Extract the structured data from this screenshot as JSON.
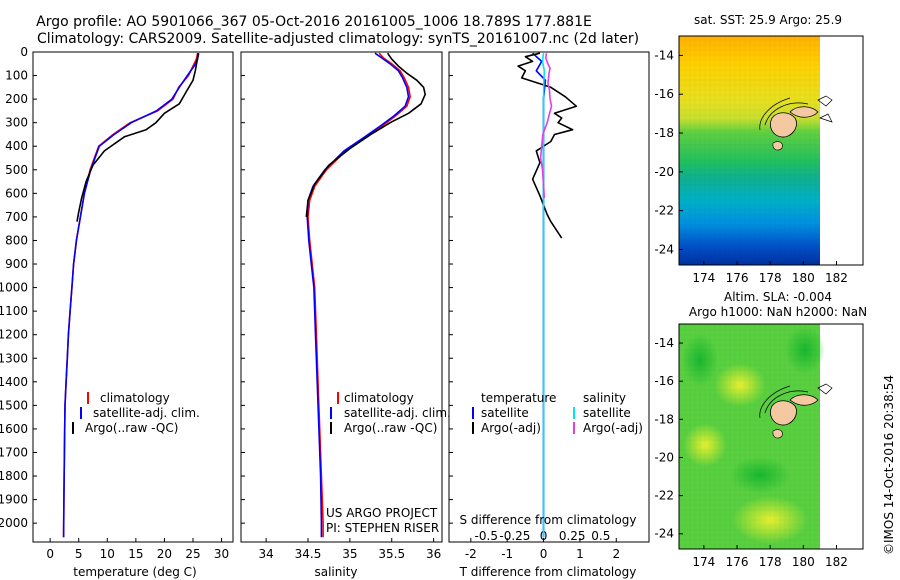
{
  "title": {
    "line1": "Argo profile: AO 5901066_367 05-Oct-2016 20161005_1006 18.789S 177.881E",
    "line2": "Climatology: CARS2009. Satellite-adjusted climatology: synTS_20161007.nc (2d later)"
  },
  "depth_ticks": [
    "0",
    "100",
    "200",
    "300",
    "400",
    "500",
    "600",
    "700",
    "800",
    "900",
    "1000",
    "1100",
    "1200",
    "1300",
    "1400",
    "1500",
    "1600",
    "1700",
    "1800",
    "1900",
    "2000"
  ],
  "colors": {
    "clim": "#ff0000",
    "sat": "#0000ff",
    "argo": "#000000",
    "sal_sat": "#00e5ee",
    "sal_argo": "#e040e0",
    "land": "#f4c8a0"
  },
  "panels": {
    "temp": {
      "xlabel": "temperature (deg C)",
      "xticks": [
        "0",
        "5",
        "10",
        "15",
        "20",
        "25",
        "30"
      ],
      "legend": [
        "climatology",
        "satellite-adj. clim.",
        "Argo(..raw -QC)"
      ]
    },
    "sal": {
      "xlabel": "salinity",
      "xticks": [
        "34",
        "34.5",
        "35",
        "35.5",
        "36"
      ],
      "legend": [
        "climatology",
        "satellite-adj. clim.",
        "Argo(..raw -QC)"
      ],
      "credit1": "US ARGO PROJECT",
      "credit2": "PI: STEPHEN RISER"
    },
    "diff": {
      "xlabel": "T difference from climatology",
      "xticks_bottom": [
        "-2",
        "-1",
        "0",
        "1",
        "2"
      ],
      "toplabel": "S difference from climatology",
      "xticks_top": [
        "-0.5",
        "-0.25",
        "0",
        "0.25",
        "0.5"
      ],
      "legend_temp_head": "temperature",
      "legend_sal_head": "salinity",
      "legend_temp": [
        "satellite",
        "Argo(-adj)"
      ],
      "legend_sal": [
        "satellite",
        "Argo(-adj)"
      ]
    },
    "sst": {
      "title": "sat. SST: 25.9 Argo: 25.9",
      "xticks": [
        "174",
        "176",
        "178",
        "180",
        "182"
      ],
      "yticks": [
        "-14",
        "-16",
        "-18",
        "-20",
        "-22",
        "-24"
      ]
    },
    "sla": {
      "title1": "Altim. SLA: -0.004",
      "title2": "Argo h1000: NaN h2000: NaN",
      "xticks": [
        "174",
        "176",
        "178",
        "180",
        "182"
      ],
      "yticks": [
        "-14",
        "-16",
        "-18",
        "-20",
        "-22",
        "-24"
      ]
    }
  },
  "side_stamp": "©IMOS 14-Oct-2016 20:38:54",
  "chart_data": [
    {
      "type": "line",
      "xlabel": "temperature (deg C)",
      "ylabel": "",
      "xlim": [
        -3,
        32
      ],
      "ylim": [
        2080,
        0
      ],
      "series": [
        {
          "name": "climatology",
          "color": "#ff0000",
          "x": [
            25.8,
            25.6,
            25.0,
            24.2,
            22.5,
            21.5,
            18.8,
            14.0,
            11.0,
            8.5,
            7.0,
            6.0,
            5.3,
            4.6,
            4.1,
            3.8,
            3.5,
            3.2,
            3.0,
            2.8,
            2.6,
            2.5,
            2.4,
            2.35
          ],
          "y": [
            5,
            30,
            60,
            100,
            150,
            200,
            250,
            300,
            350,
            400,
            500,
            600,
            700,
            800,
            900,
            1000,
            1100,
            1200,
            1300,
            1400,
            1500,
            1700,
            1900,
            2060
          ]
        },
        {
          "name": "satellite-adj. clim.",
          "color": "#0000ff",
          "x": [
            26.0,
            25.8,
            25.2,
            24.0,
            22.6,
            21.3,
            18.6,
            14.2,
            11.2,
            8.6,
            7.1,
            6.0,
            5.3,
            4.6,
            4.1,
            3.8,
            3.5,
            3.2,
            3.0,
            2.8,
            2.6,
            2.5,
            2.4,
            2.35
          ],
          "y": [
            5,
            30,
            60,
            100,
            150,
            200,
            250,
            300,
            350,
            400,
            500,
            600,
            700,
            800,
            900,
            1000,
            1100,
            1200,
            1300,
            1400,
            1500,
            1700,
            1900,
            2060
          ]
        },
        {
          "name": "Argo(..raw -QC)",
          "color": "#000000",
          "x": [
            25.9,
            25.7,
            25.4,
            25.0,
            23.8,
            22.6,
            20.0,
            18.5,
            16.8,
            13.0,
            9.5,
            7.5,
            6.3,
            5.5,
            5.0,
            4.7
          ],
          "y": [
            5,
            40,
            80,
            120,
            170,
            220,
            260,
            300,
            330,
            360,
            420,
            480,
            550,
            620,
            680,
            720
          ]
        }
      ]
    },
    {
      "type": "line",
      "xlabel": "salinity",
      "ylabel": "",
      "xlim": [
        33.7,
        36.1
      ],
      "ylim": [
        2080,
        0
      ],
      "series": [
        {
          "name": "climatology",
          "color": "#ff0000",
          "x": [
            35.35,
            35.4,
            35.5,
            35.6,
            35.65,
            35.7,
            35.72,
            35.68,
            35.55,
            35.4,
            35.2,
            34.95,
            34.72,
            34.58,
            34.52,
            34.5,
            34.52,
            34.55,
            34.58,
            34.6,
            34.62,
            34.64,
            34.66,
            34.68,
            34.68
          ],
          "y": [
            5,
            25,
            50,
            80,
            110,
            150,
            190,
            230,
            270,
            310,
            360,
            420,
            500,
            570,
            630,
            700,
            800,
            900,
            1000,
            1200,
            1400,
            1600,
            1800,
            2000,
            2060
          ]
        },
        {
          "name": "satellite-adj. clim.",
          "color": "#0000ff",
          "x": [
            35.3,
            35.38,
            35.48,
            35.58,
            35.63,
            35.68,
            35.7,
            35.66,
            35.53,
            35.38,
            35.18,
            34.93,
            34.7,
            34.56,
            34.5,
            34.49,
            34.51,
            34.54,
            34.57,
            34.59,
            34.61,
            34.63,
            34.65,
            34.66,
            34.66
          ],
          "y": [
            5,
            25,
            50,
            80,
            110,
            150,
            190,
            230,
            270,
            310,
            360,
            420,
            500,
            570,
            630,
            700,
            800,
            900,
            1000,
            1200,
            1400,
            1600,
            1800,
            2000,
            2060
          ]
        },
        {
          "name": "Argo(..raw -QC)",
          "color": "#000000",
          "x": [
            35.45,
            35.5,
            35.58,
            35.68,
            35.8,
            35.88,
            35.9,
            35.85,
            35.7,
            35.48,
            35.25,
            35.0,
            34.75,
            34.58,
            34.5,
            34.48
          ],
          "y": [
            5,
            30,
            60,
            90,
            120,
            150,
            180,
            220,
            260,
            300,
            350,
            410,
            480,
            560,
            630,
            700
          ]
        }
      ]
    },
    {
      "type": "line",
      "xlabel": "T difference from climatology",
      "x2label": "S difference from climatology",
      "ylabel": "",
      "xlim": [
        -2.6,
        2.9
      ],
      "ylim": [
        2080,
        0
      ],
      "series": [
        {
          "name": "satellite",
          "quantity": "temperature",
          "color": "#0000ff",
          "x": [
            -0.3,
            -0.05,
            -0.2,
            0.05,
            0.0,
            0.0,
            0.0,
            0.0,
            0.0,
            0.0
          ],
          "y": [
            5,
            40,
            80,
            120,
            200,
            300,
            500,
            800,
            1200,
            2060
          ]
        },
        {
          "name": "Argo(-adj)",
          "quantity": "temperature",
          "color": "#000000",
          "x": [
            -0.1,
            -0.5,
            -0.3,
            -0.7,
            -0.5,
            -0.6,
            0.2,
            0.6,
            0.9,
            0.3,
            0.5,
            0.4,
            0.8,
            0.3,
            0.2,
            -0.2,
            -0.1,
            -0.3,
            -0.1,
            0.1,
            0.2,
            0.5
          ],
          "y": [
            5,
            20,
            40,
            60,
            80,
            110,
            150,
            190,
            230,
            260,
            280,
            300,
            330,
            350,
            380,
            420,
            470,
            540,
            610,
            690,
            720,
            790
          ]
        },
        {
          "name": "satellite",
          "quantity": "salinity",
          "color": "#00e5ee",
          "x": [
            0.0,
            -0.03,
            0.02,
            0.01,
            0.0,
            0.0,
            0.0,
            0.0,
            0.0,
            0.0
          ],
          "y": [
            5,
            40,
            80,
            120,
            200,
            300,
            500,
            800,
            1200,
            2060
          ]
        },
        {
          "name": "Argo(-adj)",
          "quantity": "salinity",
          "color": "#e040e0",
          "x": [
            0.08,
            0.06,
            0.12,
            0.18,
            0.15,
            0.14,
            0.12,
            0.16,
            0.18,
            0.22,
            0.15,
            0.1,
            -0.02,
            -0.05,
            -0.08,
            -0.03,
            0.0,
            0.02
          ],
          "y": [
            5,
            25,
            50,
            70,
            90,
            110,
            130,
            160,
            200,
            230,
            270,
            300,
            350,
            400,
            450,
            500,
            560,
            620
          ]
        }
      ]
    },
    {
      "type": "heatmap",
      "title": "sat. SST: 25.9 Argo: 25.9",
      "xlim": [
        172.5,
        183.6
      ],
      "ylim": [
        -24.8,
        -13
      ]
    },
    {
      "type": "heatmap",
      "title": "Altim. SLA: -0.004",
      "xlim": [
        172.5,
        183.6
      ],
      "ylim": [
        -24.8,
        -13
      ]
    }
  ]
}
